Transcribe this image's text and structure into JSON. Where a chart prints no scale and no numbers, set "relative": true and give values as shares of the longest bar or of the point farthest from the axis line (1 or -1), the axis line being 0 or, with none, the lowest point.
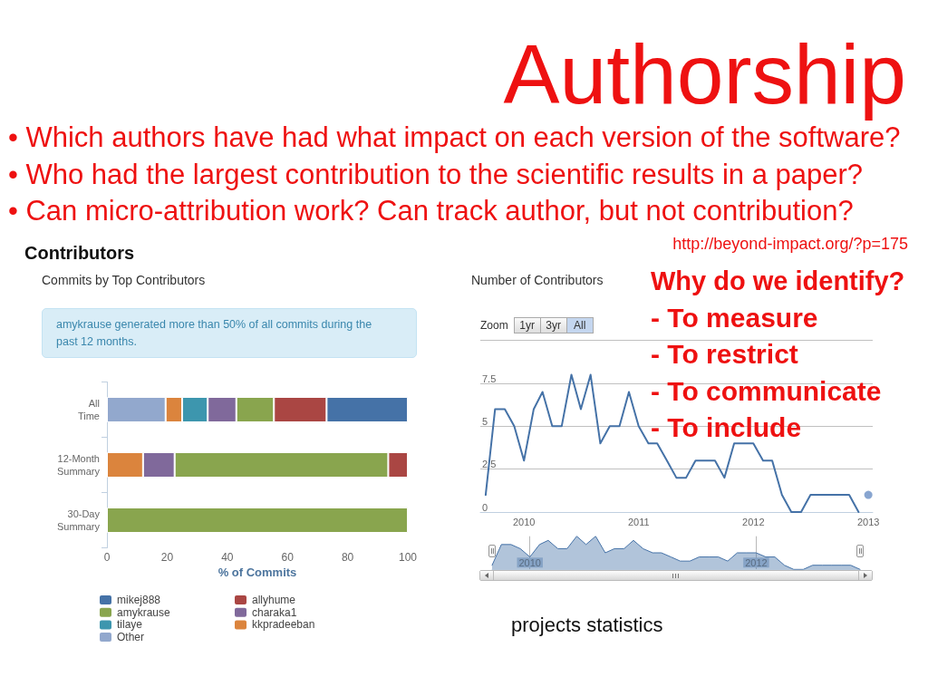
{
  "chart_data": [
    {
      "type": "other",
      "title": "Authorship",
      "annotations": [
        "• Which authors have had what impact on each version of the software?",
        "• Who had the largest contribution to the scientific results in a paper?",
        "• Can micro-attribution work? Can track author, but not contribution?",
        "http://beyond-impact.org/?p=175"
      ]
    },
    {
      "type": "bar",
      "orientation": "horizontal",
      "stacked": true,
      "title": "Contributors",
      "subtitle": "Commits by Top Contributors",
      "annotations": [
        "amykrause generated more than 50% of all commits during the past 12 months."
      ],
      "categories": [
        "All Time",
        "12-Month Summary",
        "30-Day Summary"
      ],
      "series": [
        {
          "name": "Other",
          "color": "#92a8cd",
          "values": [
            19.5,
            null,
            null
          ]
        },
        {
          "name": "kkpradeeban",
          "color": "#db843d",
          "values": [
            5.5,
            12,
            null
          ]
        },
        {
          "name": "tilaye",
          "color": "#3d96ae",
          "values": [
            8.5,
            null,
            null
          ]
        },
        {
          "name": "charaka1",
          "color": "#80699b",
          "values": [
            9.5,
            10.5,
            null
          ]
        },
        {
          "name": "amykrause",
          "color": "#89a54e",
          "values": [
            12.5,
            71,
            100
          ]
        },
        {
          "name": "allyhume",
          "color": "#aa4643",
          "values": [
            17.5,
            6.5,
            null
          ]
        },
        {
          "name": "mikej888",
          "color": "#4572a7",
          "values": [
            27,
            null,
            null
          ]
        }
      ],
      "xlabel": "% of Commits",
      "xlim": [
        0,
        100
      ],
      "xticks": [
        0,
        20,
        40,
        60,
        80,
        100
      ],
      "legend": "bottom left"
    },
    {
      "type": "line",
      "title": "Number of Contributors",
      "annotations": [
        "Zoom",
        "1yr",
        "3yr",
        "All"
      ],
      "x": [
        "2009-09",
        "2009-10",
        "2009-11",
        "2009-12",
        "2010-01",
        "2010-02",
        "2010-03",
        "2010-04",
        "2010-05",
        "2010-06",
        "2010-07",
        "2010-08",
        "2010-09",
        "2010-10",
        "2010-11",
        "2010-12",
        "2011-01",
        "2011-02",
        "2011-03",
        "2011-04",
        "2011-05",
        "2011-06",
        "2011-07",
        "2011-08",
        "2011-09",
        "2011-10",
        "2011-11",
        "2011-12",
        "2012-01",
        "2012-02",
        "2012-03",
        "2012-04",
        "2012-05",
        "2012-06",
        "2012-07",
        "2012-08",
        "2012-09",
        "2012-10",
        "2012-11",
        "2012-12"
      ],
      "series": [
        {
          "color": "#4572a7",
          "values": [
            1,
            6,
            6,
            5,
            3,
            6,
            7,
            5,
            5,
            8,
            6,
            8,
            4,
            5,
            5,
            7,
            5,
            4,
            4,
            3,
            2,
            2,
            3,
            3,
            3,
            2,
            4,
            4,
            4,
            3,
            3,
            1,
            0,
            0,
            1,
            1,
            1,
            1,
            1,
            0
          ]
        },
        {
          "type": "scatter",
          "x": [
            "2013-01"
          ],
          "values": [
            1
          ],
          "color": "#6a8fc4",
          "marker": "circle"
        }
      ],
      "xlim": [
        "2009-08-15",
        "2013-01-15"
      ],
      "xticks": [
        "2010",
        "2011",
        "2012",
        "2013"
      ],
      "ylim": [
        0,
        10
      ],
      "yticks": [
        0,
        2.5,
        5,
        7.5,
        {
          "value": 10,
          "label": null
        }
      ],
      "grid": "y",
      "marker": "none"
    },
    {
      "type": "area",
      "relative": true,
      "x": [
        "2009-09",
        "2009-10",
        "2009-11",
        "2009-12",
        "2010-01",
        "2010-02",
        "2010-03",
        "2010-04",
        "2010-05",
        "2010-06",
        "2010-07",
        "2010-08",
        "2010-09",
        "2010-10",
        "2010-11",
        "2010-12",
        "2011-01",
        "2011-02",
        "2011-03",
        "2011-04",
        "2011-05",
        "2011-06",
        "2011-07",
        "2011-08",
        "2011-09",
        "2011-10",
        "2011-11",
        "2011-12",
        "2012-01",
        "2012-02",
        "2012-03",
        "2012-04",
        "2012-05",
        "2012-06",
        "2012-07",
        "2012-08",
        "2012-09",
        "2012-10",
        "2012-11",
        "2012-12"
      ],
      "series": [
        {
          "color": "#4572a7",
          "values": [
            0.125,
            0.75,
            0.75,
            0.625,
            0.375,
            0.75,
            0.875,
            0.625,
            0.625,
            1,
            0.75,
            1,
            0.5,
            0.625,
            0.625,
            0.875,
            0.625,
            0.5,
            0.5,
            0.375,
            0.25,
            0.25,
            0.375,
            0.375,
            0.375,
            0.25,
            0.5,
            0.5,
            0.5,
            0.375,
            0.375,
            0.125,
            0,
            0,
            0.125,
            0.125,
            0.125,
            0.125,
            0.125,
            0
          ]
        }
      ],
      "xlim": [
        "2009-09",
        "2012-12"
      ],
      "xticks": [
        "2010",
        "2012"
      ],
      "grid": "x",
      "marker": "none"
    },
    {
      "type": "other",
      "title": "Why do we identify?",
      "annotations": [
        "- To measure",
        "- To restrict",
        "- To communicate",
        "- To include"
      ]
    },
    {
      "type": "other",
      "annotations": [
        "projects statistics"
      ]
    }
  ]
}
